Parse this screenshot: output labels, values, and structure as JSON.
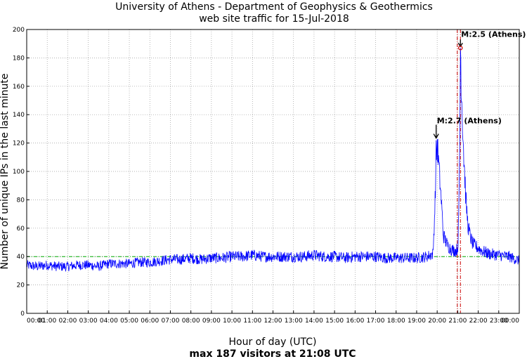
{
  "chart_data": {
    "type": "line",
    "title": "University of Athens - Department of Geophysics & Geothermics",
    "subtitle": "web site traffic for 15-Jul-2018",
    "xlabel": "Hour of day (UTC)",
    "ylabel": "Number of unique IPs in the last minute",
    "footer": "max 187 visitors at 21:08 UTC",
    "xlim": [
      0,
      24
    ],
    "ylim": [
      0,
      200
    ],
    "x_tick_labels": [
      "00:00",
      "01:00",
      "02:00",
      "03:00",
      "04:00",
      "05:00",
      "06:00",
      "07:00",
      "08:00",
      "09:00",
      "10:00",
      "11:00",
      "12:00",
      "13:00",
      "14:00",
      "15:00",
      "16:00",
      "17:00",
      "18:00",
      "19:00",
      "20:00",
      "21:00",
      "22:00",
      "23:00",
      "00:00"
    ],
    "y_tick_labels": [
      "0",
      "20",
      "40",
      "60",
      "80",
      "100",
      "120",
      "140",
      "160",
      "180",
      "200"
    ],
    "y_ticks": [
      0,
      20,
      40,
      60,
      80,
      100,
      120,
      140,
      160,
      180,
      200
    ],
    "grid": true,
    "series": [
      {
        "color": "#0000ff",
        "x": [
          0,
          0.5,
          1,
          1.5,
          2,
          2.5,
          3,
          3.5,
          4,
          4.5,
          5,
          5.5,
          6,
          6.5,
          7,
          7.5,
          8,
          8.5,
          9,
          9.5,
          10,
          10.5,
          11,
          11.5,
          12,
          12.5,
          13,
          13.5,
          14,
          14.5,
          15,
          15.5,
          16,
          16.5,
          17,
          17.5,
          18,
          18.5,
          19,
          19.5,
          19.8,
          19.9,
          19.95,
          20.0,
          20.1,
          20.2,
          20.3,
          20.5,
          20.7,
          20.9,
          21.0,
          21.05,
          21.1,
          21.133,
          21.2,
          21.3,
          21.4,
          21.5,
          21.6,
          21.7,
          21.8,
          22.0,
          22.2,
          22.5,
          23.0,
          23.5,
          24
        ],
        "y": [
          34,
          33,
          34,
          33,
          33,
          34,
          34,
          33,
          35,
          35,
          35,
          36,
          36,
          37,
          38,
          38,
          39,
          38,
          39,
          39,
          40,
          40,
          41,
          40,
          40,
          40,
          40,
          40,
          41,
          40,
          40,
          39,
          40,
          40,
          40,
          39,
          39,
          39,
          39,
          40,
          42,
          80,
          110,
          120,
          100,
          80,
          55,
          48,
          45,
          44,
          46,
          65,
          120,
          187,
          150,
          110,
          80,
          62,
          55,
          50,
          48,
          46,
          44,
          42,
          41,
          40,
          37
        ]
      }
    ],
    "reference_lines": [
      {
        "axis": "y",
        "value": 40,
        "color": "#00aa00",
        "style": "dash-dot"
      },
      {
        "axis": "x",
        "value": 21.133,
        "color": "#cc0000",
        "style": "dash-dot"
      },
      {
        "axis": "x",
        "value": 20.98,
        "color": "#cc0000",
        "style": "dash-dot"
      }
    ],
    "annotations": [
      {
        "text": "M:2.7 (Athens)",
        "x": 19.95,
        "y": 122
      },
      {
        "text": "M:2.5 (Athens)",
        "x": 21.133,
        "y": 187
      }
    ],
    "max_marker": {
      "x": 21.133,
      "y": 187,
      "color": "#cc0000"
    }
  }
}
